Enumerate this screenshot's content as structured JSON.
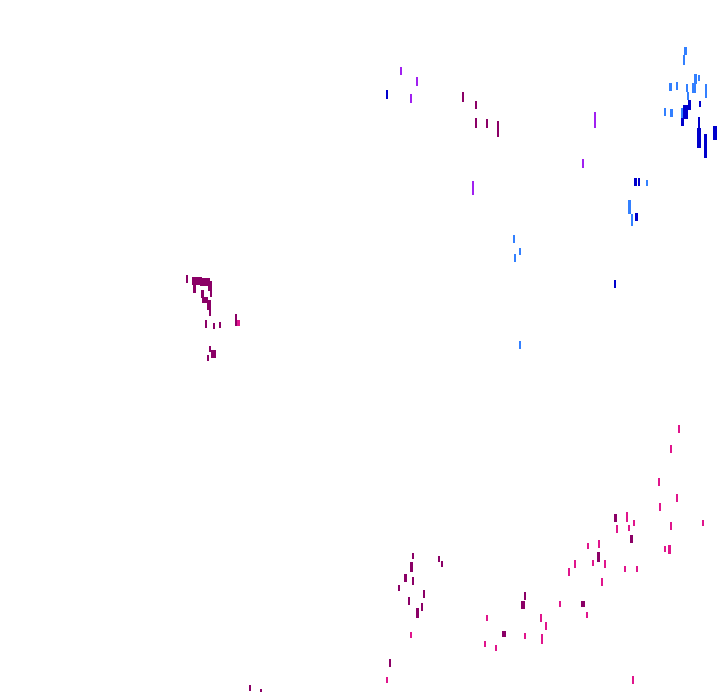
{
  "colors": {
    "background": "#ffffff",
    "light_blue": "#3380ff",
    "dark_blue": "#0000cc",
    "violet": "#a020f0",
    "maroon": "#8b0066",
    "magenta": "#e0158c"
  }
}
